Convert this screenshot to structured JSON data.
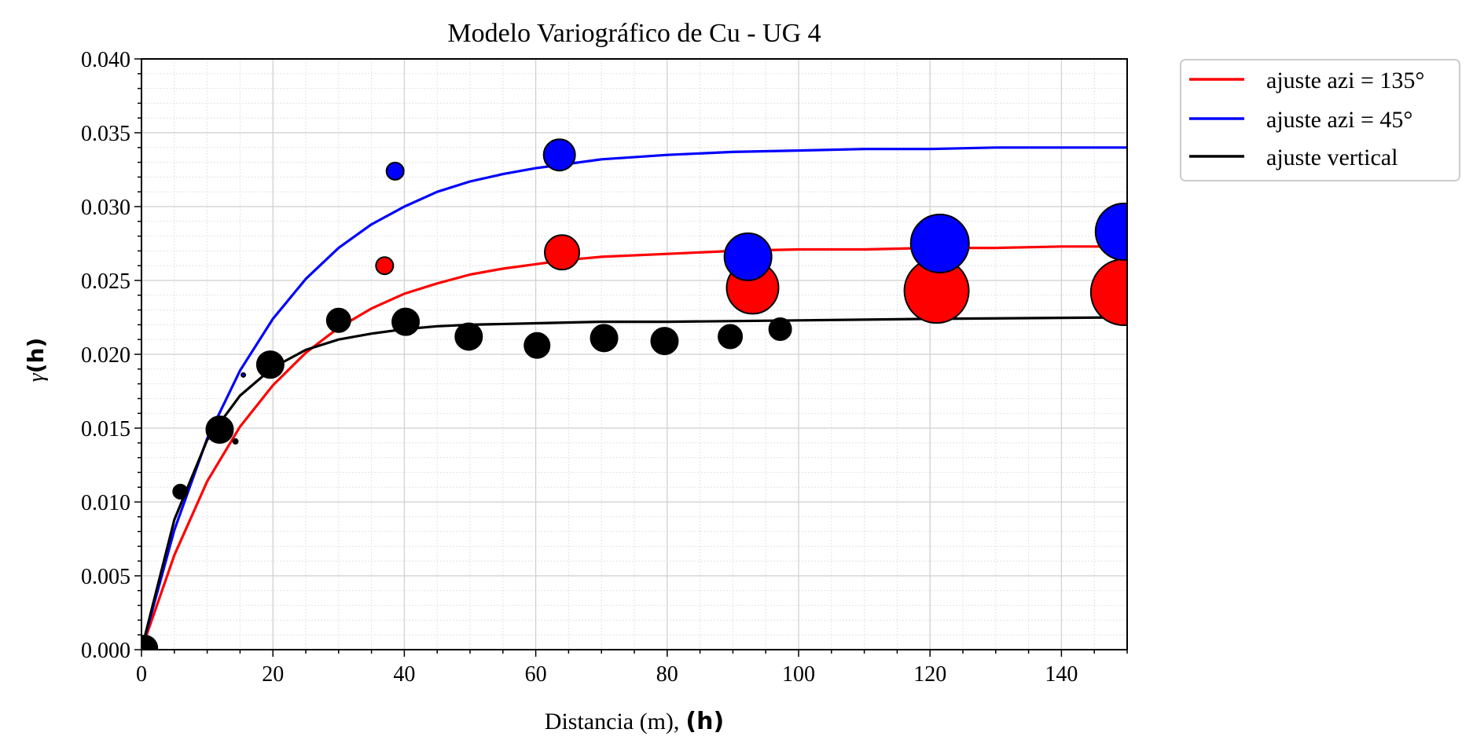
{
  "chart_data": {
    "type": "scatter",
    "title": "Modelo Variográfico de Cu - UG 4",
    "xlabel_text": "Distancia (m),",
    "xlabel_bold": "(h)",
    "ylabel_symbol": "γ",
    "ylabel_bold": "(h)",
    "xlim": [
      0,
      150
    ],
    "ylim": [
      0,
      0.04
    ],
    "x_ticks": [
      0,
      20,
      40,
      60,
      80,
      100,
      120,
      140
    ],
    "x_tick_labels": [
      "0",
      "20",
      "40",
      "60",
      "80",
      "100",
      "120",
      "140"
    ],
    "y_ticks": [
      0,
      0.005,
      0.01,
      0.015,
      0.02,
      0.025,
      0.03,
      0.035,
      0.04
    ],
    "y_tick_labels": [
      "0.000",
      "0.005",
      "0.010",
      "0.015",
      "0.020",
      "0.025",
      "0.030",
      "0.035",
      "0.040"
    ],
    "grid": true,
    "legend_position": "outside-top-right",
    "legend": [
      {
        "label": "ajuste azi = 135°",
        "color": "#ff0000"
      },
      {
        "label": "ajuste azi = 45°",
        "color": "#0000ff"
      },
      {
        "label": "ajuste vertical",
        "color": "#000000"
      }
    ],
    "lines": [
      {
        "color": "#ff0000",
        "x": [
          0,
          5,
          10,
          15,
          20,
          25,
          30,
          35,
          40,
          45,
          50,
          55,
          60,
          65,
          70,
          80,
          90,
          100,
          110,
          120,
          130,
          140,
          150
        ],
        "y": [
          0,
          0.0064,
          0.0114,
          0.0151,
          0.0179,
          0.0201,
          0.0218,
          0.0231,
          0.0241,
          0.0248,
          0.0254,
          0.0258,
          0.0261,
          0.0264,
          0.0266,
          0.0268,
          0.027,
          0.0271,
          0.0271,
          0.0272,
          0.0272,
          0.0273,
          0.0273
        ]
      },
      {
        "color": "#0000ff",
        "x": [
          0,
          5,
          10,
          15,
          20,
          25,
          30,
          35,
          40,
          45,
          50,
          55,
          60,
          65,
          70,
          80,
          90,
          100,
          110,
          120,
          130,
          140,
          150
        ],
        "y": [
          0,
          0.0081,
          0.0143,
          0.0189,
          0.0224,
          0.0251,
          0.0272,
          0.0288,
          0.03,
          0.031,
          0.0317,
          0.0322,
          0.0326,
          0.0329,
          0.0332,
          0.0335,
          0.0337,
          0.0338,
          0.0339,
          0.0339,
          0.034,
          0.034,
          0.034
        ]
      },
      {
        "color": "#000000",
        "x": [
          0,
          5,
          10,
          15,
          20,
          25,
          30,
          35,
          40,
          45,
          50,
          60,
          70,
          80,
          100,
          120,
          150
        ],
        "y": [
          0,
          0.0088,
          0.0142,
          0.0172,
          0.0191,
          0.0203,
          0.021,
          0.0214,
          0.0217,
          0.0219,
          0.022,
          0.0221,
          0.0222,
          0.0222,
          0.0223,
          0.0224,
          0.0225
        ]
      }
    ],
    "points": [
      {
        "color": "#ff0000",
        "x": [
          37,
          64,
          93,
          121,
          149.5
        ],
        "y": [
          0.026,
          0.0269,
          0.0245,
          0.0243,
          0.0242
        ],
        "size": [
          11,
          22,
          33,
          41,
          42
        ]
      },
      {
        "color": "#0000ff",
        "x": [
          15.5,
          38.6,
          63.6,
          92.3,
          121.5,
          149.5
        ],
        "y": [
          0.0186,
          0.0324,
          0.0335,
          0.0266,
          0.0275,
          0.0283
        ],
        "size": [
          2.5,
          11,
          20,
          30,
          37,
          36
        ]
      },
      {
        "color": "#000000",
        "x": [
          0.5,
          5.9,
          11.9,
          14.3,
          19.6,
          30,
          40.2,
          49.8,
          60.2,
          70.4,
          79.6,
          89.6,
          97.2
        ],
        "y": [
          0.0001,
          0.0107,
          0.0149,
          0.0141,
          0.0193,
          0.0223,
          0.0222,
          0.0212,
          0.0206,
          0.0211,
          0.0209,
          0.0212,
          0.0217
        ],
        "size": [
          16,
          9,
          17,
          3,
          17,
          15,
          17,
          17,
          16,
          17,
          17,
          15,
          14
        ]
      }
    ]
  }
}
